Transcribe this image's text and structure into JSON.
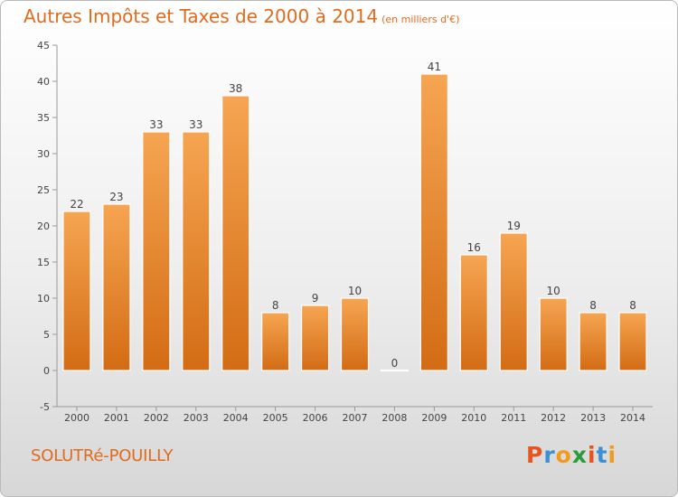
{
  "title": "Autres Impôts et Taxes de 2000 à 2014",
  "subtitle": "(en milliers d'€)",
  "commune": "SOLUTRé-POUILLY",
  "logo": {
    "text": "Proxiti",
    "colors": [
      "#e8541e",
      "#3c8fd0",
      "#f39a1c",
      "#2a9a3c",
      "#e8541e",
      "#3c8fd0",
      "#f39a1c"
    ]
  },
  "colors": {
    "bar_top": "#f6a552",
    "bar_bottom": "#d36c14",
    "title": "#e06b1d"
  },
  "chart_data": {
    "type": "bar",
    "categories": [
      "2000",
      "2001",
      "2002",
      "2003",
      "2004",
      "2005",
      "2006",
      "2007",
      "2008",
      "2009",
      "2010",
      "2011",
      "2012",
      "2013",
      "2014"
    ],
    "values": [
      22,
      23,
      33,
      33,
      38,
      8,
      9,
      10,
      0,
      41,
      16,
      19,
      10,
      8,
      8
    ],
    "title": "Autres Impôts et Taxes de 2000 à 2014",
    "xlabel": "",
    "ylabel": "",
    "ylim": [
      -5,
      45
    ],
    "yticks": [
      -5,
      0,
      5,
      10,
      15,
      20,
      25,
      30,
      35,
      40,
      45
    ],
    "grid": false,
    "data_labels": true
  }
}
